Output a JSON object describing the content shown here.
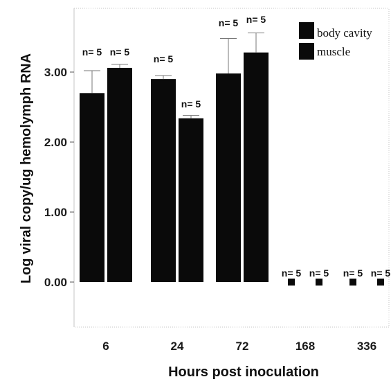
{
  "chart_data": {
    "type": "bar",
    "xlabel": "Hours post inoculation",
    "ylabel": "Log viral copy/ug hemolymph RNA",
    "ylim": [
      -0.3,
      3.9
    ],
    "yticks": [
      "0.00",
      "1.00",
      "2.00",
      "3.00"
    ],
    "ytick_values": [
      0,
      1,
      2,
      3
    ],
    "categories": [
      "6",
      "24",
      "72",
      "168",
      "336"
    ],
    "legend": {
      "placement": "top-right",
      "entries": [
        "body cavity",
        "muscle"
      ]
    },
    "grid": false,
    "colors": {
      "bar": "#0a0a0a",
      "error": "#777777",
      "frame": "#bdbdbd"
    },
    "series": [
      {
        "name": "body cavity",
        "values": [
          2.7,
          2.9,
          2.98,
          0.0,
          0.0
        ],
        "errors": [
          0.32,
          0.05,
          0.5,
          0.0,
          0.0
        ],
        "n_labels": [
          "n= 5",
          "n= 5",
          "n= 5",
          "n= 5",
          "n= 5"
        ],
        "style": [
          "bar",
          "bar",
          "bar",
          "point",
          "point"
        ]
      },
      {
        "name": "muscle",
        "values": [
          3.06,
          2.34,
          3.28,
          0.0,
          0.0
        ],
        "errors": [
          0.05,
          0.04,
          0.28,
          0.0,
          0.0
        ],
        "n_labels": [
          "n= 5",
          "n= 5",
          "n= 5",
          "n= 5",
          "n= 5"
        ],
        "style": [
          "bar",
          "bar",
          "bar",
          "point",
          "point"
        ]
      }
    ]
  }
}
